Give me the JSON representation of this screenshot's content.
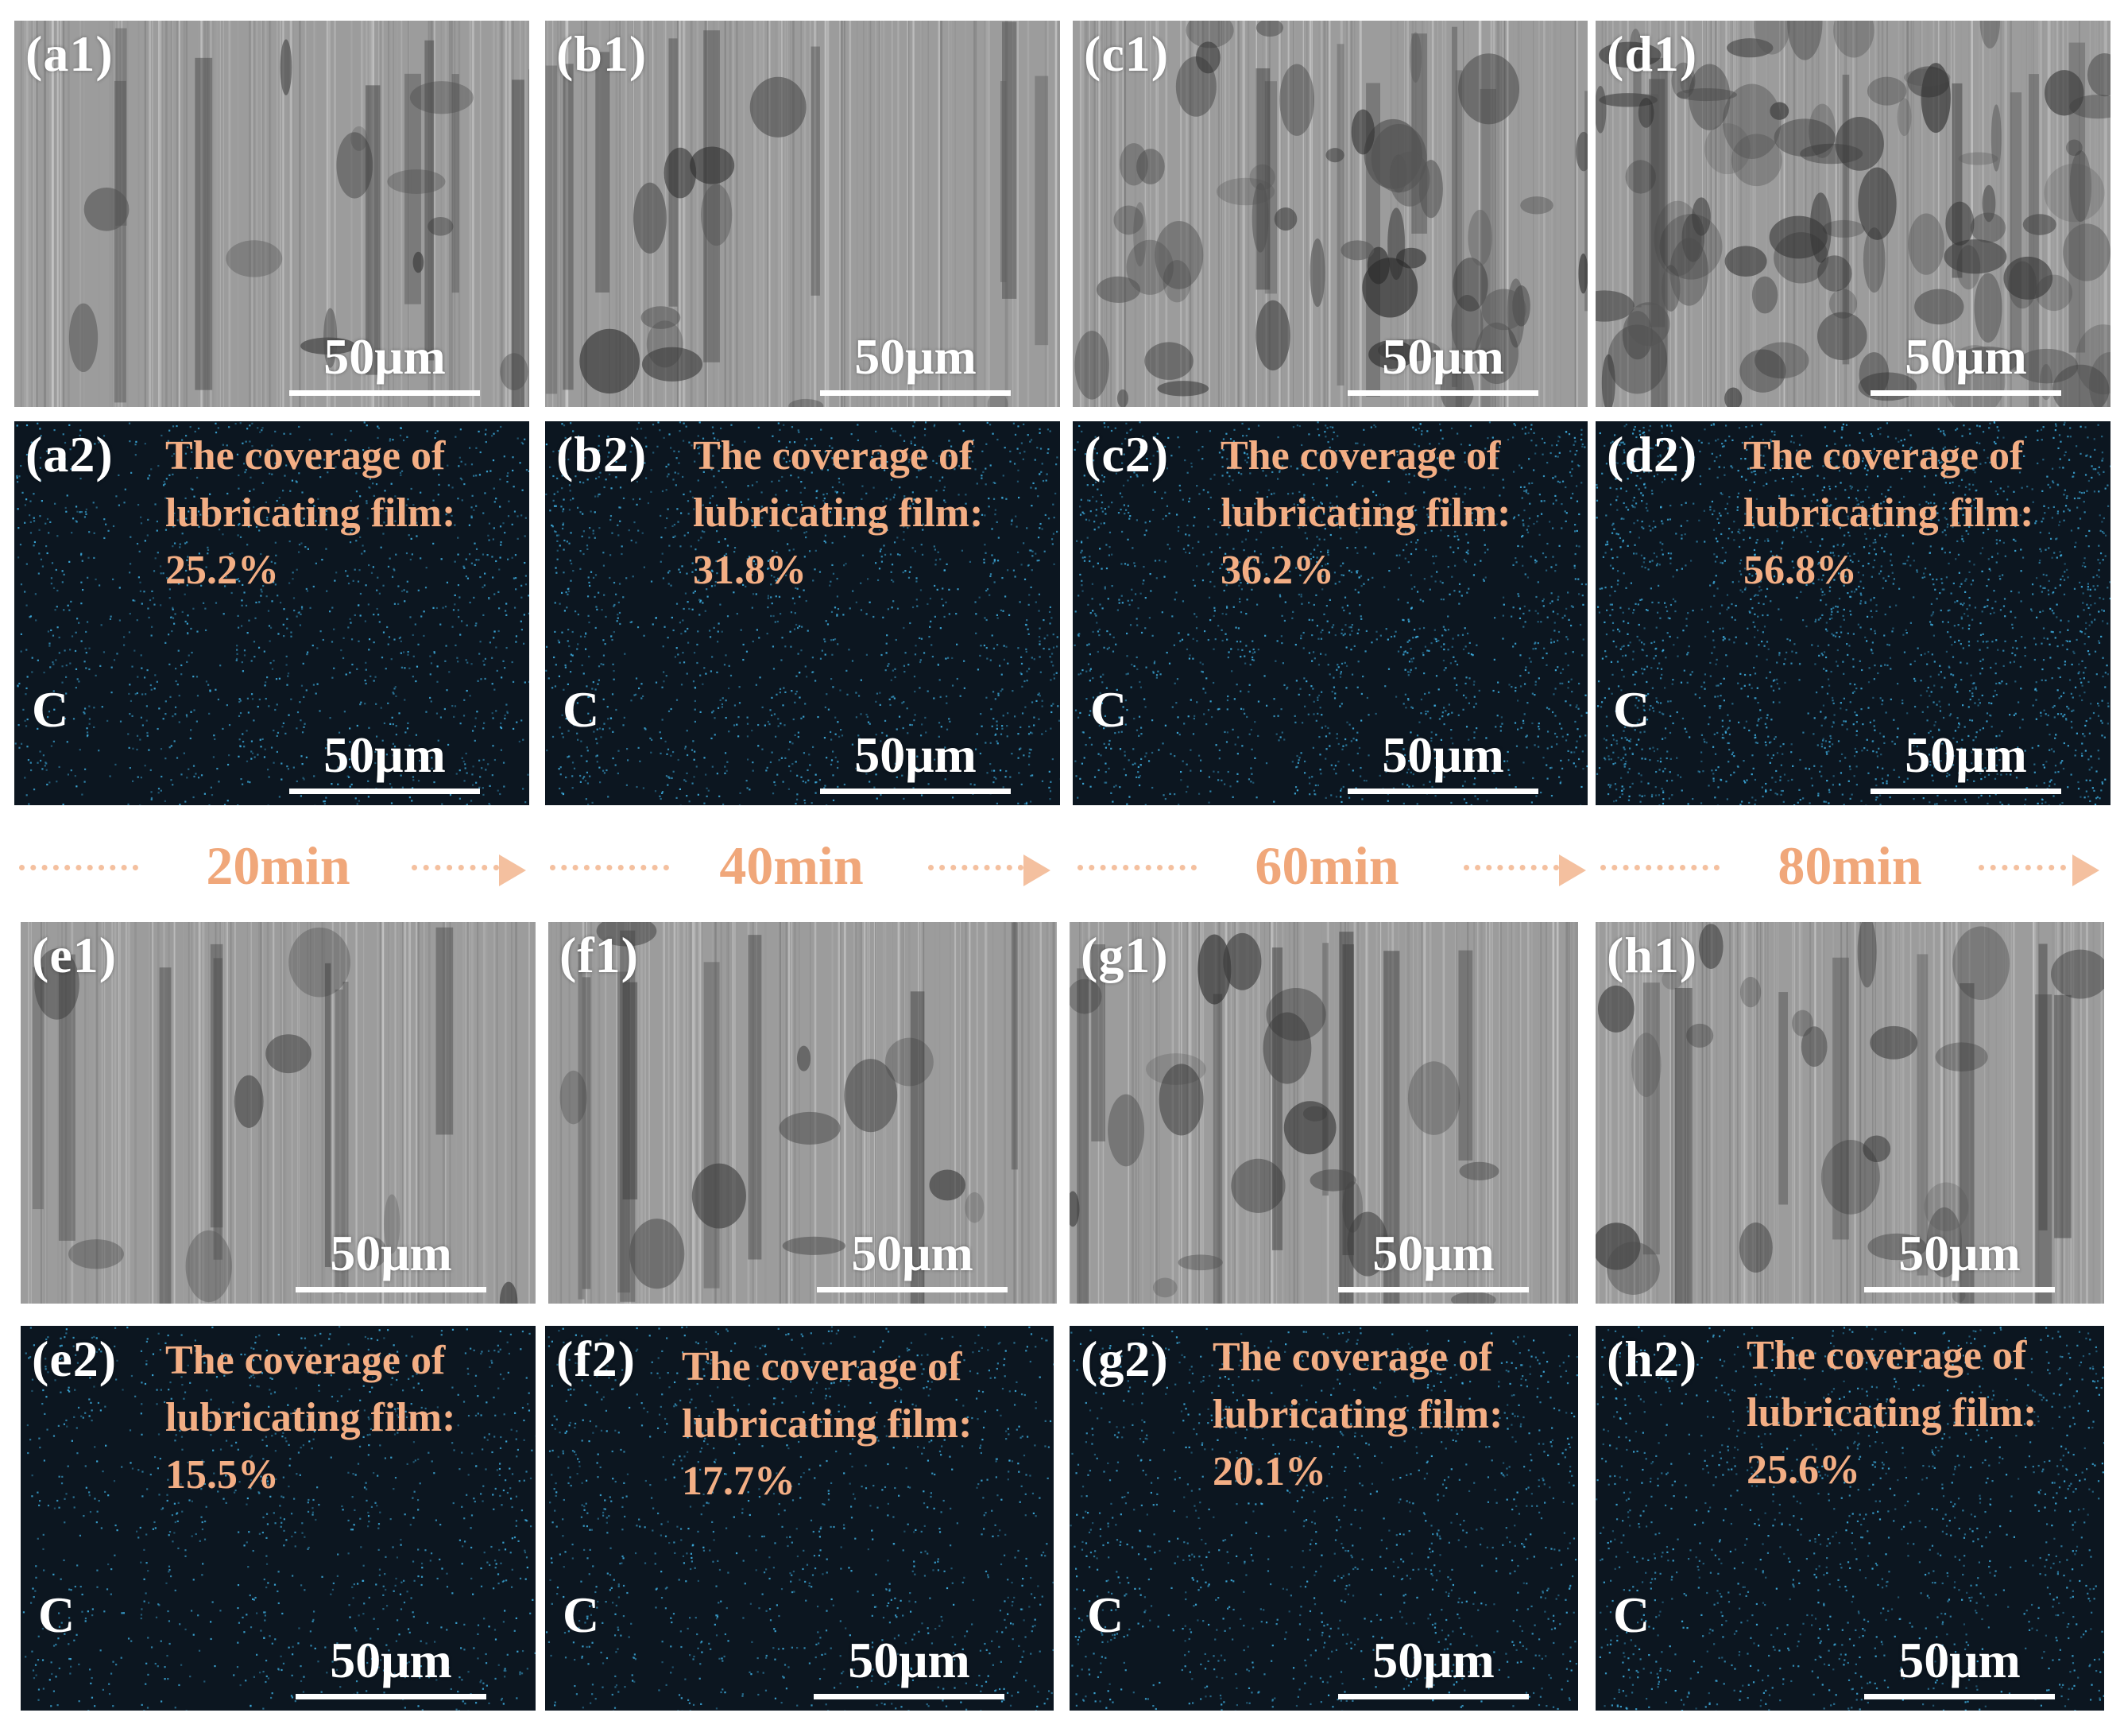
{
  "panels": {
    "a1": {
      "label": "(a1)",
      "scale": "50μm"
    },
    "b1": {
      "label": "(b1)",
      "scale": "50μm"
    },
    "c1": {
      "label": "(c1)",
      "scale": "50μm"
    },
    "d1": {
      "label": "(d1)",
      "scale": "50μm"
    },
    "a2": {
      "label": "(a2)",
      "element": "C",
      "coverage_line1": "The coverage of",
      "coverage_line2": "lubricating film:",
      "coverage_value": "25.2%",
      "scale": "50μm"
    },
    "b2": {
      "label": "(b2)",
      "element": "C",
      "coverage_line1": "The coverage of",
      "coverage_line2": "lubricating film:",
      "coverage_value": "31.8%",
      "scale": "50μm"
    },
    "c2": {
      "label": "(c2)",
      "element": "C",
      "coverage_line1": "The coverage of",
      "coverage_line2": "lubricating film:",
      "coverage_value": "36.2%",
      "scale": "50μm"
    },
    "d2": {
      "label": "(d2)",
      "element": "C",
      "coverage_line1": "The coverage of",
      "coverage_line2": "lubricating film:",
      "coverage_value": "56.8%",
      "scale": "50μm"
    },
    "e1": {
      "label": "(e1)",
      "scale": "50μm"
    },
    "f1": {
      "label": "(f1)",
      "scale": "50μm"
    },
    "g1": {
      "label": "(g1)",
      "scale": "50μm"
    },
    "h1": {
      "label": "(h1)",
      "scale": "50μm"
    },
    "e2": {
      "label": "(e2)",
      "element": "C",
      "coverage_line1": "The coverage of",
      "coverage_line2": "lubricating film:",
      "coverage_value": "15.5%",
      "scale": "50μm"
    },
    "f2": {
      "label": "(f2)",
      "element": "C",
      "coverage_line1": "The coverage of",
      "coverage_line2": "lubricating film:",
      "coverage_value": "17.7%",
      "scale": "50μm"
    },
    "g2": {
      "label": "(g2)",
      "element": "C",
      "coverage_line1": "The coverage of",
      "coverage_line2": "lubricating film:",
      "coverage_value": "20.1%",
      "scale": "50μm"
    },
    "h2": {
      "label": "(h2)",
      "element": "C",
      "coverage_line1": "The coverage of",
      "coverage_line2": "lubricating film:",
      "coverage_value": "25.6%",
      "scale": "50μm"
    }
  },
  "timeline": [
    "20min",
    "40min",
    "60min",
    "80min"
  ],
  "colors": {
    "sem_gray": "#9c9c9c",
    "eds_background": "#0c1620",
    "eds_carbon": "#3fb4e8",
    "annotation_orange": "#f3ae84",
    "timeline_orange": "#f0a77a"
  }
}
